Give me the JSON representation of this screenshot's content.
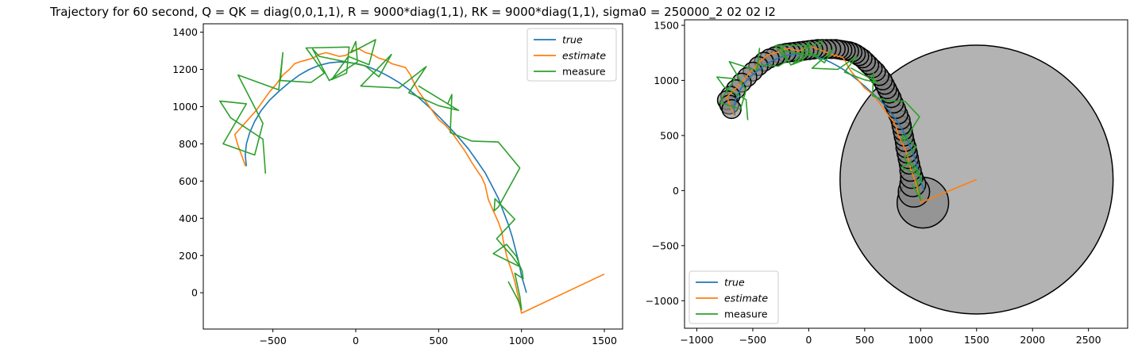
{
  "title": "Trajectory for 60 second, Q = QK = diag(0,0,1,1), R = 9000*diag(1,1), RK = 9000*diag(1,1), sigma0 = 250000_2 02 02 I2",
  "colors": {
    "true": "#1f77b4",
    "estimate": "#ff7f0e",
    "measure": "#2ca02c",
    "circle_fill": "#808080"
  },
  "chart_data": [
    {
      "type": "line",
      "xlim": [
        -920,
        1610
      ],
      "ylim": [
        -195,
        1445
      ],
      "xticks": [
        -500,
        0,
        500,
        1000,
        1500
      ],
      "yticks": [
        0,
        200,
        400,
        600,
        800,
        1000,
        1200,
        1400
      ],
      "xtick_labels": [
        "−500",
        "0",
        "500",
        "1000",
        "1500"
      ],
      "ytick_labels": [
        "0",
        "200",
        "400",
        "600",
        "800",
        "1000",
        "1200",
        "1400"
      ],
      "legend": {
        "placement": "top-right",
        "entries": [
          "true",
          "estimate",
          "measure"
        ]
      },
      "series": [
        {
          "name": "true",
          "color": "#1f77b4",
          "x": [
            -660,
            -667,
            -660,
            -640,
            -610,
            -570,
            -520,
            -460,
            -400,
            -340,
            -280,
            -220,
            -160,
            -100,
            -40,
            20,
            80,
            140,
            200,
            260,
            320,
            380,
            440,
            500,
            560,
            620,
            680,
            730,
            780,
            820,
            860,
            890,
            920,
            945,
            965,
            985,
            1000,
            1012,
            1020,
            1025,
            1028,
            1030
          ],
          "y": [
            680,
            740,
            800,
            860,
            920,
            980,
            1035,
            1085,
            1130,
            1170,
            1200,
            1222,
            1235,
            1240,
            1237,
            1228,
            1212,
            1190,
            1162,
            1130,
            1092,
            1048,
            1000,
            948,
            893,
            835,
            773,
            710,
            645,
            578,
            508,
            438,
            368,
            298,
            228,
            158,
            90,
            55,
            30,
            15,
            5,
            0
          ]
        },
        {
          "name": "estimate",
          "color": "#ff7f0e",
          "x": [
            -665,
            -685,
            -710,
            -730,
            -700,
            -660,
            -630,
            -600,
            -560,
            -520,
            -480,
            -440,
            -400,
            -370,
            -340,
            -300,
            -260,
            -220,
            -180,
            -140,
            -100,
            -60,
            -20,
            20,
            60,
            100,
            140,
            180,
            220,
            260,
            300,
            330,
            350,
            380,
            420,
            460,
            500,
            540,
            580,
            620,
            660,
            700,
            730,
            760,
            780,
            790,
            800,
            820,
            840,
            860,
            880,
            890,
            900,
            910,
            920,
            940,
            960,
            980,
            1000,
            1500
          ],
          "y": [
            680,
            730,
            790,
            850,
            880,
            920,
            950,
            980,
            1030,
            1080,
            1120,
            1170,
            1200,
            1230,
            1240,
            1250,
            1260,
            1280,
            1290,
            1280,
            1270,
            1275,
            1300,
            1310,
            1290,
            1280,
            1260,
            1250,
            1230,
            1220,
            1210,
            1170,
            1130,
            1080,
            1030,
            980,
            930,
            900,
            860,
            810,
            760,
            700,
            660,
            620,
            580,
            540,
            500,
            460,
            420,
            380,
            330,
            280,
            240,
            200,
            170,
            120,
            60,
            -20,
            -110,
            100
          ]
        },
        {
          "name": "measure",
          "color": "#2ca02c",
          "x": [
            -545,
            -560,
            -755,
            -820,
            -660,
            -800,
            -610,
            -560,
            -710,
            -465,
            -440,
            -455,
            -270,
            -190,
            -300,
            -40,
            -55,
            -145,
            -45,
            80,
            120,
            -30,
            0,
            10,
            -160,
            -260,
            -220,
            55,
            140,
            215,
            30,
            260,
            425,
            320,
            500,
            620,
            380,
            555,
            580,
            570,
            700,
            860,
            990,
            860,
            835,
            840,
            960,
            850,
            940,
            990,
            830,
            910,
            970,
            990,
            1005,
            1010,
            960,
            990,
            1000,
            980,
            920
          ],
          "y": [
            640,
            825,
            940,
            1030,
            1015,
            800,
            740,
            910,
            1170,
            1090,
            1290,
            1140,
            1130,
            1180,
            1315,
            1320,
            1180,
            1145,
            1270,
            1225,
            1360,
            1290,
            1350,
            1240,
            1140,
            1310,
            1270,
            1220,
            1160,
            1280,
            1110,
            1100,
            1215,
            1075,
            1005,
            980,
            1110,
            1015,
            1065,
            860,
            815,
            810,
            670,
            460,
            440,
            505,
            395,
            290,
            200,
            140,
            210,
            260,
            195,
            145,
            115,
            75,
            105,
            -20,
            -90,
            -40,
            60
          ]
        }
      ]
    },
    {
      "type": "line",
      "xlim": [
        -1110,
        2850
      ],
      "ylim": [
        -1250,
        1550
      ],
      "xticks": [
        -1000,
        -500,
        0,
        500,
        1000,
        1500,
        2000,
        2500
      ],
      "yticks": [
        -1000,
        -500,
        0,
        500,
        1000,
        1500
      ],
      "xtick_labels": [
        "−1000",
        "−500",
        "0",
        "500",
        "1000",
        "1500",
        "2000",
        "2500"
      ],
      "ytick_labels": [
        "−1000",
        "−500",
        "0",
        "500",
        "1000",
        "1500"
      ],
      "legend": {
        "placement": "lower-left",
        "entries": [
          "true",
          "estimate",
          "measure"
        ]
      },
      "covariance_circles": {
        "centers_x": [
          1500,
          1020,
          940,
          930,
          920,
          910,
          900,
          890,
          880,
          870,
          860,
          850,
          840,
          830,
          820,
          800,
          780,
          760,
          740,
          720,
          700,
          680,
          660,
          630,
          600,
          570,
          540,
          510,
          480,
          450,
          420,
          390,
          360,
          330,
          300,
          270,
          240,
          200,
          160,
          120,
          80,
          40,
          0,
          -40,
          -80,
          -120,
          -160,
          -200,
          -250,
          -300,
          -350,
          -400,
          -450,
          -500,
          -550,
          -600,
          -650,
          -700,
          -730,
          -710,
          -690
        ],
        "centers_y": [
          100,
          -110,
          -10,
          60,
          120,
          180,
          240,
          290,
          340,
          390,
          440,
          490,
          540,
          590,
          640,
          690,
          740,
          790,
          840,
          880,
          920,
          960,
          1000,
          1040,
          1080,
          1110,
          1140,
          1170,
          1200,
          1220,
          1240,
          1255,
          1265,
          1270,
          1275,
          1280,
          1285,
          1285,
          1285,
          1285,
          1285,
          1280,
          1275,
          1270,
          1265,
          1260,
          1255,
          1250,
          1240,
          1220,
          1200,
          1170,
          1130,
          1080,
          1030,
          980,
          920,
          860,
          820,
          780,
          740
        ],
        "radii": [
          1220,
          230,
          140,
          115,
          100,
          95,
          90,
          90,
          90,
          90,
          85,
          85,
          85,
          85,
          85,
          85,
          85,
          85,
          85,
          85,
          85,
          85,
          85,
          85,
          85,
          85,
          85,
          85,
          85,
          85,
          85,
          85,
          85,
          85,
          85,
          85,
          85,
          85,
          85,
          85,
          85,
          85,
          85,
          85,
          85,
          85,
          85,
          85,
          85,
          85,
          85,
          85,
          85,
          85,
          85,
          85,
          85,
          85,
          85,
          85,
          85
        ]
      },
      "series": [
        {
          "name": "true",
          "color": "#1f77b4",
          "x": [
            -660,
            -667,
            -660,
            -640,
            -610,
            -570,
            -520,
            -460,
            -400,
            -340,
            -280,
            -220,
            -160,
            -100,
            -40,
            20,
            80,
            140,
            200,
            260,
            320,
            380,
            440,
            500,
            560,
            620,
            680,
            730,
            780,
            820,
            860,
            890,
            920,
            945,
            965,
            985,
            1000,
            1012,
            1020,
            1025,
            1028,
            1030
          ],
          "y": [
            680,
            740,
            800,
            860,
            920,
            980,
            1035,
            1085,
            1130,
            1170,
            1200,
            1222,
            1235,
            1240,
            1237,
            1228,
            1212,
            1190,
            1162,
            1130,
            1092,
            1048,
            1000,
            948,
            893,
            835,
            773,
            710,
            645,
            578,
            508,
            438,
            368,
            298,
            228,
            158,
            90,
            55,
            30,
            15,
            5,
            0
          ]
        },
        {
          "name": "estimate",
          "color": "#ff7f0e",
          "x": [
            -665,
            -685,
            -710,
            -730,
            -700,
            -660,
            -630,
            -600,
            -560,
            -520,
            -480,
            -440,
            -400,
            -370,
            -340,
            -300,
            -260,
            -220,
            -180,
            -140,
            -100,
            -60,
            -20,
            20,
            60,
            100,
            140,
            180,
            220,
            260,
            300,
            330,
            350,
            380,
            420,
            460,
            500,
            540,
            580,
            620,
            660,
            700,
            730,
            760,
            780,
            790,
            800,
            820,
            840,
            860,
            880,
            890,
            900,
            910,
            920,
            940,
            960,
            980,
            1000,
            1500
          ],
          "y": [
            680,
            730,
            790,
            850,
            880,
            920,
            950,
            980,
            1030,
            1080,
            1120,
            1170,
            1200,
            1230,
            1240,
            1250,
            1260,
            1280,
            1290,
            1280,
            1270,
            1275,
            1300,
            1310,
            1290,
            1280,
            1260,
            1250,
            1230,
            1220,
            1210,
            1170,
            1130,
            1080,
            1030,
            980,
            930,
            900,
            860,
            810,
            760,
            700,
            660,
            620,
            580,
            540,
            500,
            460,
            420,
            380,
            330,
            280,
            240,
            200,
            170,
            120,
            60,
            -20,
            -110,
            100
          ]
        },
        {
          "name": "measure",
          "color": "#2ca02c",
          "x": [
            -545,
            -560,
            -755,
            -820,
            -660,
            -800,
            -610,
            -560,
            -710,
            -465,
            -440,
            -455,
            -270,
            -190,
            -300,
            -40,
            -55,
            -145,
            -45,
            80,
            120,
            -30,
            0,
            10,
            -160,
            -260,
            -220,
            55,
            140,
            215,
            30,
            260,
            425,
            320,
            500,
            620,
            380,
            555,
            580,
            570,
            700,
            860,
            990,
            860,
            835,
            840,
            960,
            850,
            940,
            990,
            830,
            910,
            970,
            990,
            1005,
            1010,
            960,
            990,
            1000,
            980,
            920
          ],
          "y": [
            640,
            825,
            940,
            1030,
            1015,
            800,
            740,
            910,
            1170,
            1090,
            1290,
            1140,
            1130,
            1180,
            1315,
            1320,
            1180,
            1145,
            1270,
            1225,
            1360,
            1290,
            1350,
            1240,
            1140,
            1310,
            1270,
            1220,
            1160,
            1280,
            1110,
            1100,
            1215,
            1075,
            1005,
            980,
            1110,
            1015,
            1065,
            860,
            815,
            810,
            670,
            460,
            440,
            505,
            395,
            290,
            200,
            140,
            210,
            260,
            195,
            145,
            115,
            75,
            105,
            -20,
            -90,
            -40,
            60
          ]
        }
      ]
    }
  ]
}
